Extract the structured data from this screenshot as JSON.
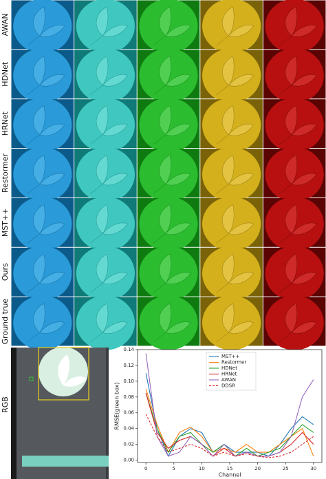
{
  "row_labels": [
    "AWAN",
    "HDNet",
    "HRNet",
    "Restormer",
    "MST++",
    "Ours",
    "Ground true"
  ],
  "rgb_label": "RGB",
  "chart_data": {
    "type": "line",
    "xlabel": "Channel",
    "ylabel": "RMSE(green box)",
    "x": [
      0,
      2,
      4,
      6,
      8,
      10,
      12,
      14,
      16,
      18,
      20,
      22,
      24,
      26,
      28,
      30
    ],
    "xlim": [
      -1.5,
      31.5
    ],
    "xticks": [
      0,
      5,
      10,
      15,
      20,
      25,
      30
    ],
    "ylim": [
      -0.003,
      0.14
    ],
    "yticks": [
      {
        "value": 0,
        "label": "0.00"
      },
      {
        "value": 0.02,
        "label": "0.02"
      },
      {
        "value": 0.04,
        "label": "0.04"
      },
      {
        "value": 0.06,
        "label": "0.06"
      },
      {
        "value": 0.08,
        "label": "0.08"
      },
      {
        "value": 0.1,
        "label": "0.10"
      },
      {
        "value": 0.12,
        "label": "0.12"
      },
      {
        "value": 0.14,
        "label": "0.14"
      }
    ],
    "legend": "upper center",
    "series": [
      {
        "name": "MST++",
        "color": "#1f77b4",
        "linestyle": "solid",
        "values": [
          0.11,
          0.04,
          0.005,
          0.03,
          0.04,
          0.035,
          0.01,
          0.02,
          0.01,
          0.01,
          0.01,
          0.005,
          0.02,
          0.04,
          0.055,
          0.045
        ]
      },
      {
        "name": "Restormer",
        "color": "#ff7f0e",
        "linestyle": "solid",
        "values": [
          0.09,
          0.045,
          0.01,
          0.035,
          0.042,
          0.03,
          0.01,
          0.015,
          0.01,
          0.02,
          0.01,
          0.01,
          0.02,
          0.03,
          0.04,
          0.005
        ]
      },
      {
        "name": "HDNet",
        "color": "#2ca02c",
        "linestyle": "solid",
        "values": [
          0.085,
          0.04,
          0.01,
          0.03,
          0.035,
          0.02,
          0.01,
          0.02,
          0.005,
          0.015,
          0.005,
          0.01,
          0.015,
          0.03,
          0.045,
          0.035
        ]
      },
      {
        "name": "HRNet",
        "color": "#d62728",
        "linestyle": "solid",
        "values": [
          0.085,
          0.035,
          0.015,
          0.025,
          0.03,
          0.02,
          0.005,
          0.015,
          0.005,
          0.01,
          0.005,
          0.005,
          0.01,
          0.02,
          0.035,
          0.02
        ]
      },
      {
        "name": "AWAN",
        "color": "#9467bd",
        "linestyle": "solid",
        "values": [
          0.135,
          0.03,
          0.005,
          0.01,
          0.03,
          0.02,
          0.005,
          0.02,
          0.005,
          0.01,
          0.005,
          0.005,
          0.01,
          0.03,
          0.08,
          0.102
        ]
      },
      {
        "name": "DDSR",
        "color": "#d62728",
        "linestyle": "dashed",
        "values": [
          0.058,
          0.03,
          0.01,
          0.015,
          0.02,
          0.015,
          0.005,
          0.01,
          0.005,
          0.008,
          0.005,
          0.003,
          0.005,
          0.01,
          0.02,
          0.03
        ]
      }
    ]
  }
}
